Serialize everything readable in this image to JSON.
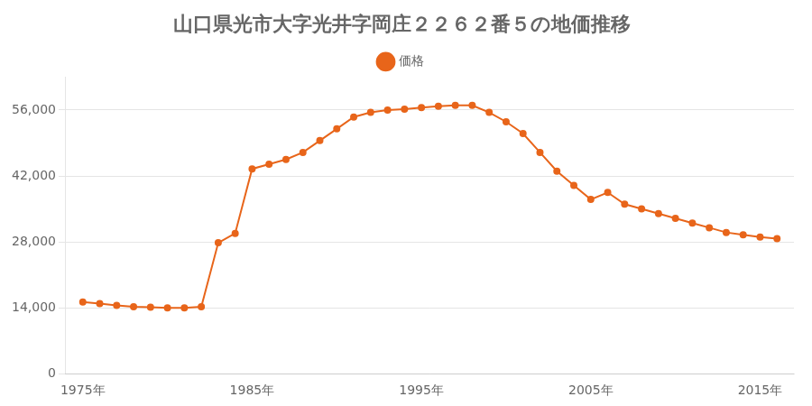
{
  "chart_data": {
    "type": "line",
    "title": "山口県光市大字光井字岡庄２２６２番５の地価推移",
    "x": [
      1975,
      1976,
      1977,
      1978,
      1979,
      1980,
      1981,
      1982,
      1983,
      1984,
      1985,
      1986,
      1987,
      1988,
      1989,
      1990,
      1991,
      1992,
      1993,
      1994,
      1995,
      1996,
      1997,
      1998,
      1999,
      2000,
      2001,
      2002,
      2003,
      2004,
      2005,
      2006,
      2007,
      2008,
      2009,
      2010,
      2011,
      2012,
      2013,
      2014,
      2015,
      2016
    ],
    "series": [
      {
        "name": "価格",
        "color": "#e8651a",
        "marker": "circle",
        "values": [
          15200,
          14900,
          14500,
          14200,
          14100,
          14000,
          14000,
          14200,
          27800,
          29800,
          43500,
          44500,
          45500,
          47000,
          49500,
          52000,
          54500,
          55500,
          56000,
          56200,
          56500,
          56800,
          57000,
          57000,
          55500,
          53500,
          51000,
          47000,
          43000,
          40000,
          37000,
          38500,
          36000,
          35000,
          34000,
          33000,
          32000,
          31000,
          30000,
          29500,
          29000,
          28700
        ]
      }
    ],
    "xlim": [
      1974,
      2017
    ],
    "xticks": [
      {
        "value": 1975,
        "label": "1975年"
      },
      {
        "value": 1985,
        "label": "1985年"
      },
      {
        "value": 1995,
        "label": "1995年"
      },
      {
        "value": 2005,
        "label": "2005年"
      },
      {
        "value": 2015,
        "label": "2015年"
      }
    ],
    "ylim": [
      0,
      63000
    ],
    "yticks": [
      0,
      {
        "value": 14000,
        "label": "14,000"
      },
      {
        "value": 28000,
        "label": "28,000"
      },
      {
        "value": 42000,
        "label": "42,000"
      },
      {
        "value": 56000,
        "label": "56,000"
      }
    ],
    "grid": "y",
    "legend": "top"
  }
}
